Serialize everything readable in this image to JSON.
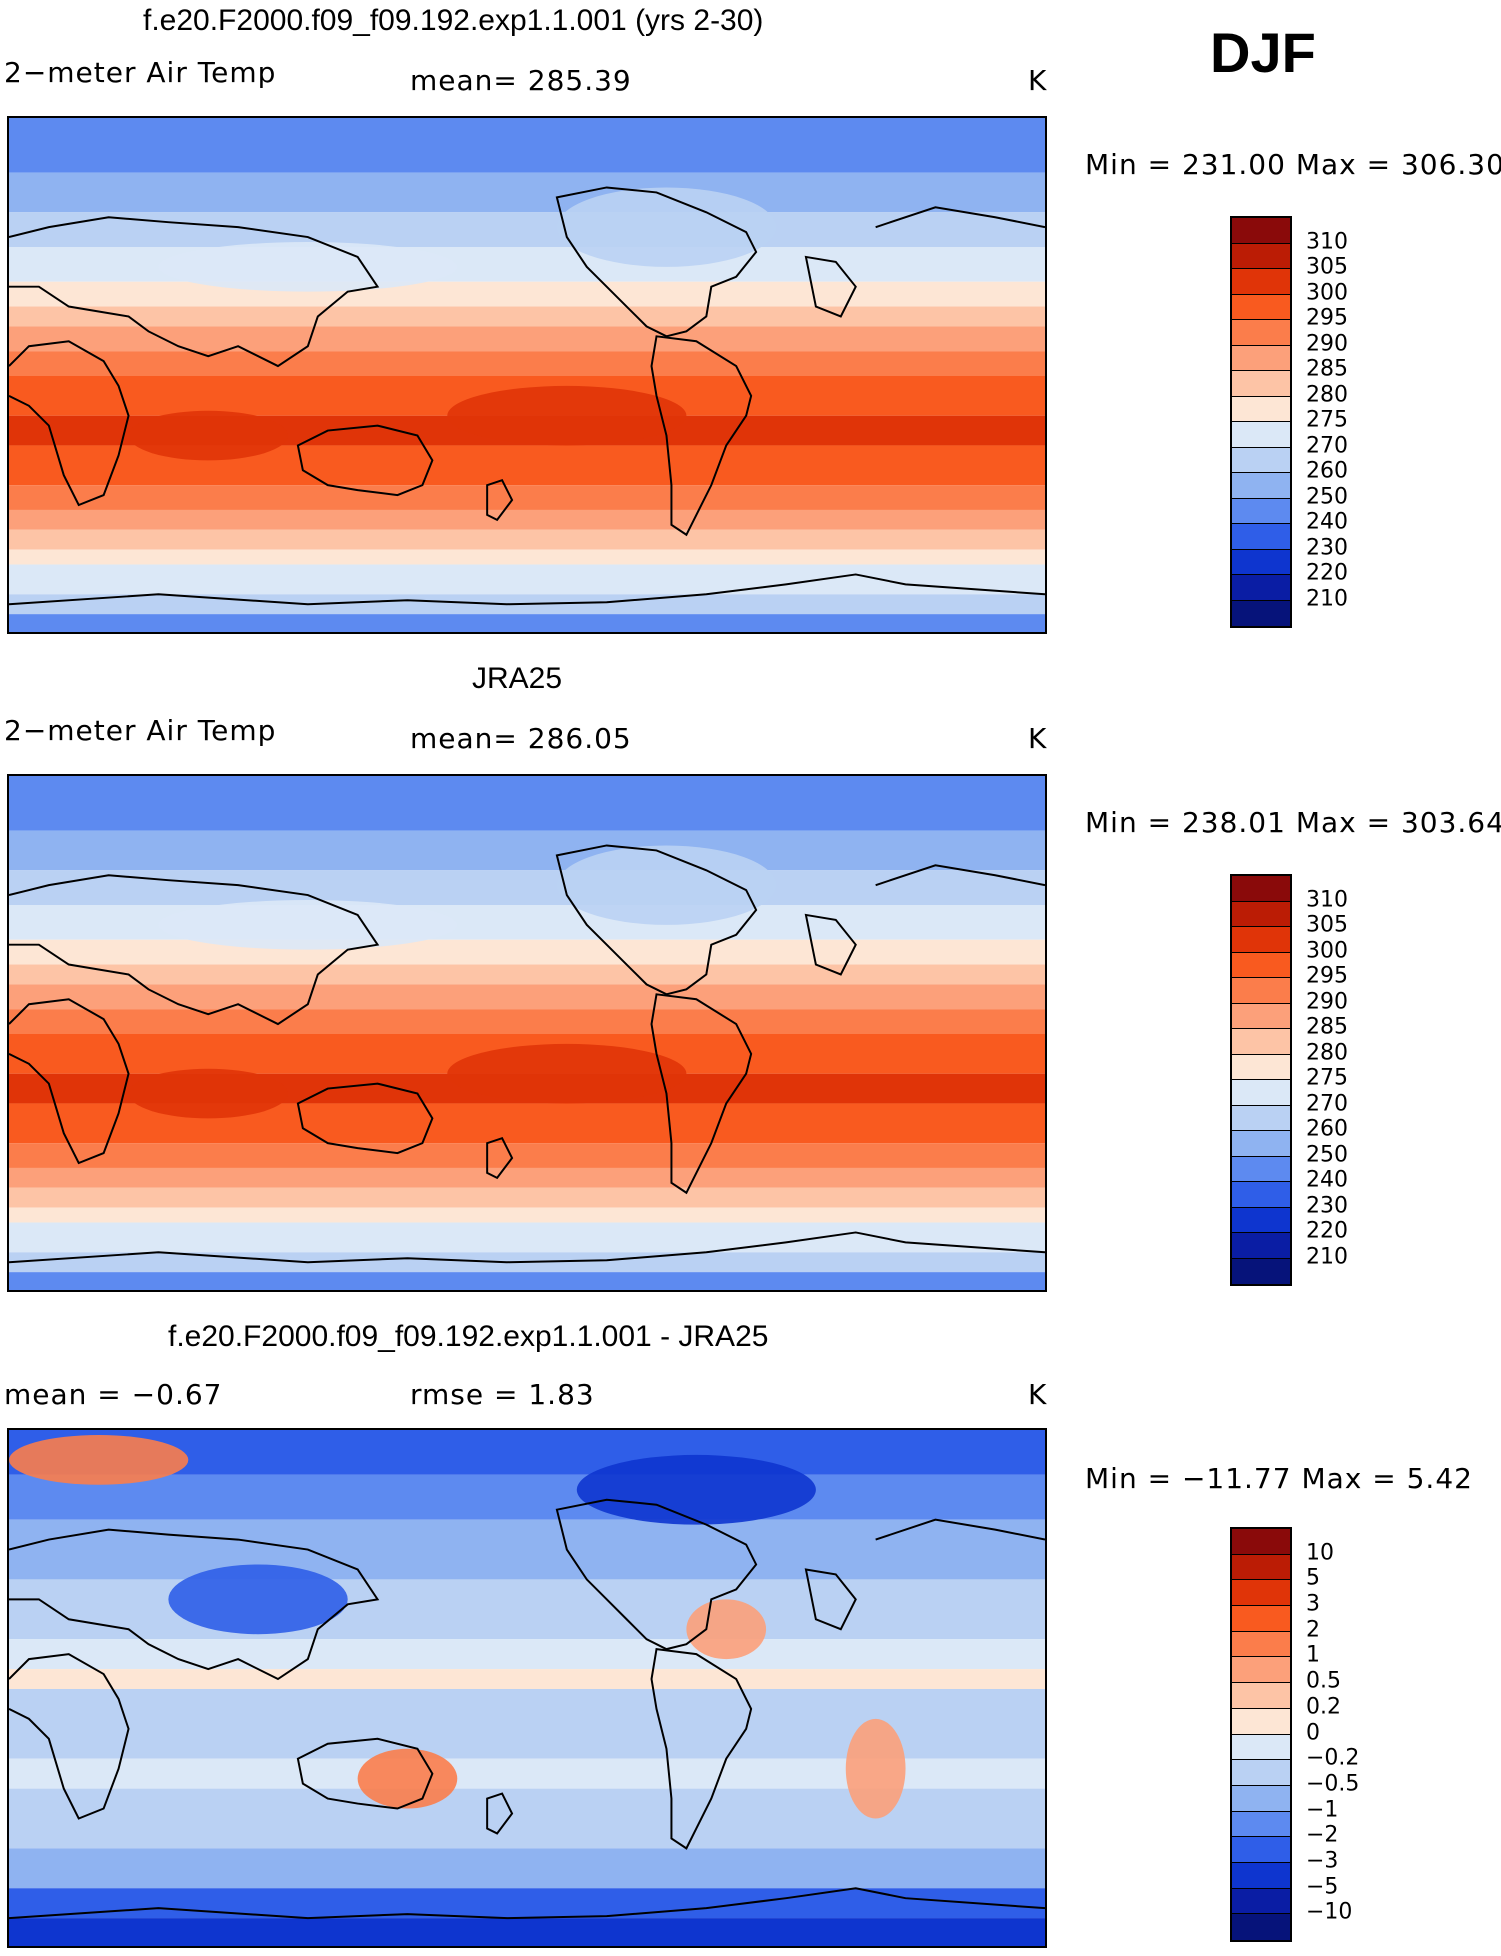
{
  "season": "DJF",
  "chart_data": [
    {
      "type": "heatmap",
      "title": "f.e20.F2000.f09_f09.192.exp1.1.001 (yrs 2-30)",
      "left_label": "2−meter Air Temp",
      "center_label": "mean=  285.39",
      "units": "K",
      "mean": 285.39,
      "min_max": "Min  =  231.00  Max  =  306.30",
      "min": 231.0,
      "max": 306.3,
      "levels": [
        "310",
        "305",
        "300",
        "295",
        "290",
        "285",
        "280",
        "275",
        "270",
        "260",
        "250",
        "240",
        "230",
        "220",
        "210"
      ],
      "colors": [
        "#8a0a0a",
        "#bb1c05",
        "#e03408",
        "#f95a1f",
        "#fb7d4b",
        "#fca07a",
        "#fdc4a6",
        "#fde6d5",
        "#dbe8f7",
        "#bad1f3",
        "#8fb3f1",
        "#5d8af0",
        "#2f5ee8",
        "#0e35cf",
        "#0a1da4",
        "#06137a"
      ]
    },
    {
      "type": "heatmap",
      "title": "JRA25",
      "left_label": "2−meter Air Temp",
      "center_label": "mean=  286.05",
      "units": "K",
      "mean": 286.05,
      "min_max": "Min  =  238.01  Max  =  303.64",
      "min": 238.01,
      "max": 303.64,
      "levels": [
        "310",
        "305",
        "300",
        "295",
        "290",
        "285",
        "280",
        "275",
        "270",
        "260",
        "250",
        "240",
        "230",
        "220",
        "210"
      ],
      "colors": [
        "#8a0a0a",
        "#bb1c05",
        "#e03408",
        "#f95a1f",
        "#fb7d4b",
        "#fca07a",
        "#fdc4a6",
        "#fde6d5",
        "#dbe8f7",
        "#bad1f3",
        "#8fb3f1",
        "#5d8af0",
        "#2f5ee8",
        "#0e35cf",
        "#0a1da4",
        "#06137a"
      ]
    },
    {
      "type": "heatmap",
      "title": "f.e20.F2000.f09_f09.192.exp1.1.001 - JRA25",
      "left_label": "mean  =    −0.67",
      "center_label": "rmse  =     1.83",
      "units": "K",
      "mean": -0.67,
      "rmse": 1.83,
      "min_max": "Min  =  −11.77  Max  =     5.42",
      "min": -11.77,
      "max": 5.42,
      "levels": [
        "10",
        "5",
        "3",
        "2",
        "1",
        "0.5",
        "0.2",
        "0",
        "−0.2",
        "−0.5",
        "−1",
        "−2",
        "−3",
        "−5",
        "−10"
      ],
      "colors": [
        "#8a0a0a",
        "#bb1c05",
        "#e03408",
        "#f95a1f",
        "#fb7d4b",
        "#fca07a",
        "#fdc4a6",
        "#fde6d5",
        "#dbe8f7",
        "#bad1f3",
        "#8fb3f1",
        "#5d8af0",
        "#2f5ee8",
        "#0e35cf",
        "#0a1da4",
        "#06137a"
      ]
    }
  ]
}
